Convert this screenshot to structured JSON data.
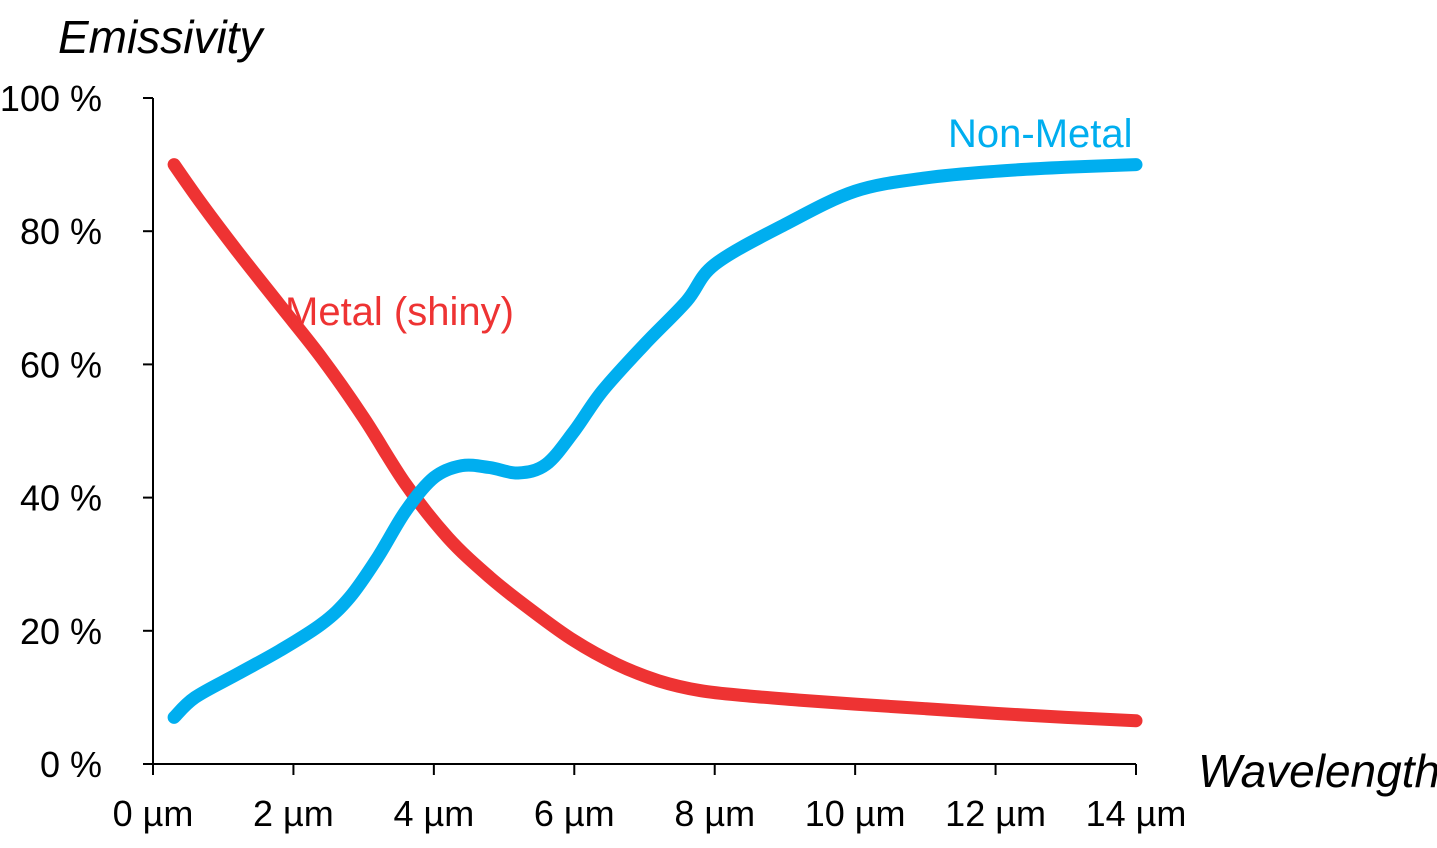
{
  "chart_data": {
    "type": "line",
    "title": "",
    "ylabel": "Emissivity",
    "xlabel": "Wavelength",
    "xlim": [
      0,
      14
    ],
    "ylim": [
      0,
      100
    ],
    "x_ticks": [
      {
        "value": 0,
        "label": "0 µm"
      },
      {
        "value": 2,
        "label": "2 µm"
      },
      {
        "value": 4,
        "label": "4 µm"
      },
      {
        "value": 6,
        "label": "6 µm"
      },
      {
        "value": 8,
        "label": "8 µm"
      },
      {
        "value": 10,
        "label": "10 µm"
      },
      {
        "value": 12,
        "label": "12 µm"
      },
      {
        "value": 14,
        "label": "14 µm"
      }
    ],
    "y_ticks": [
      {
        "value": 0,
        "label": "0 %"
      },
      {
        "value": 20,
        "label": "20 %"
      },
      {
        "value": 40,
        "label": "40 %"
      },
      {
        "value": 60,
        "label": "60 %"
      },
      {
        "value": 80,
        "label": "80 %"
      },
      {
        "value": 100,
        "label": "100 %"
      }
    ],
    "grid": false,
    "legend": "none",
    "series": [
      {
        "name": "Metal (shiny)",
        "color": "#ee3333",
        "points": [
          [
            0.3,
            90
          ],
          [
            0.7,
            84
          ],
          [
            1.2,
            77
          ],
          [
            1.8,
            69
          ],
          [
            2.4,
            61
          ],
          [
            3.0,
            52
          ],
          [
            3.6,
            42
          ],
          [
            4.2,
            34
          ],
          [
            4.8,
            28
          ],
          [
            5.4,
            23
          ],
          [
            6.0,
            18.5
          ],
          [
            6.6,
            15
          ],
          [
            7.2,
            12.5
          ],
          [
            7.8,
            11
          ],
          [
            8.5,
            10.2
          ],
          [
            9.2,
            9.6
          ],
          [
            10.0,
            9.0
          ],
          [
            11.0,
            8.3
          ],
          [
            12.0,
            7.6
          ],
          [
            13.0,
            7.0
          ],
          [
            14.0,
            6.5
          ]
        ]
      },
      {
        "name": "Non-Metal",
        "color": "#00aeef",
        "points": [
          [
            0.3,
            7
          ],
          [
            0.6,
            10
          ],
          [
            1.2,
            13.5
          ],
          [
            1.8,
            17
          ],
          [
            2.4,
            21
          ],
          [
            2.8,
            25
          ],
          [
            3.2,
            31
          ],
          [
            3.6,
            38
          ],
          [
            4.0,
            43
          ],
          [
            4.4,
            44.8
          ],
          [
            4.8,
            44.5
          ],
          [
            5.2,
            43.7
          ],
          [
            5.6,
            45
          ],
          [
            6.0,
            50
          ],
          [
            6.4,
            56
          ],
          [
            7.0,
            63
          ],
          [
            7.6,
            69.5
          ],
          [
            8.0,
            75
          ],
          [
            9.0,
            81
          ],
          [
            10.0,
            86
          ],
          [
            11.0,
            88
          ],
          [
            12.0,
            89
          ],
          [
            13.0,
            89.6
          ],
          [
            14.0,
            90
          ]
        ]
      }
    ]
  }
}
